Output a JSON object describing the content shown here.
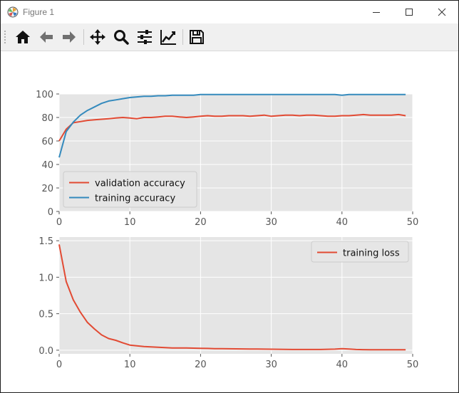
{
  "window": {
    "title": "Figure 1"
  },
  "toolbar": {
    "buttons": [
      {
        "name": "home",
        "icon": "home-icon"
      },
      {
        "name": "back",
        "icon": "arrow-left-icon"
      },
      {
        "name": "forward",
        "icon": "arrow-right-icon"
      },
      {
        "name": "pan",
        "icon": "move-icon"
      },
      {
        "name": "zoom",
        "icon": "magnifier-icon"
      },
      {
        "name": "subplots",
        "icon": "sliders-icon"
      },
      {
        "name": "edit-axes",
        "icon": "line-chart-icon"
      },
      {
        "name": "save",
        "icon": "floppy-disk-icon"
      }
    ]
  },
  "chart_data": [
    {
      "type": "line",
      "title": "",
      "xlabel": "",
      "ylabel": "",
      "xlim": [
        0,
        50
      ],
      "ylim": [
        0,
        100
      ],
      "xticks": [
        0,
        10,
        20,
        30,
        40,
        50
      ],
      "yticks": [
        0,
        20,
        40,
        60,
        80,
        100
      ],
      "grid": true,
      "legend_position": "lower-left",
      "x": [
        0,
        1,
        2,
        3,
        4,
        5,
        6,
        7,
        8,
        9,
        10,
        11,
        12,
        13,
        14,
        15,
        16,
        17,
        18,
        19,
        20,
        21,
        22,
        23,
        24,
        25,
        26,
        27,
        28,
        29,
        30,
        31,
        32,
        33,
        34,
        35,
        36,
        37,
        38,
        39,
        40,
        41,
        42,
        43,
        44,
        45,
        46,
        47,
        48,
        49
      ],
      "series": [
        {
          "name": "validation accuracy",
          "color": "#e24a33",
          "values": [
            60,
            70,
            75.5,
            76.5,
            77.5,
            78,
            78.5,
            79,
            79.5,
            80,
            79.5,
            79,
            80,
            80,
            80.5,
            81,
            81,
            80.5,
            80,
            80.5,
            81,
            81.5,
            81,
            81,
            81.5,
            81.5,
            81.5,
            81,
            81.5,
            82,
            81,
            81.5,
            82,
            82,
            81.5,
            82,
            82,
            81.5,
            81,
            81,
            81.5,
            81.5,
            82,
            82.5,
            82,
            82,
            82,
            82,
            82.5,
            81.5
          ]
        },
        {
          "name": "training accuracy",
          "color": "#348abd",
          "values": [
            46,
            68,
            76,
            82,
            86,
            89,
            92,
            94,
            95,
            96,
            97,
            97.5,
            98,
            98,
            98.5,
            98.5,
            99,
            99,
            99,
            99,
            99.5,
            99.5,
            99.5,
            99.5,
            99.5,
            99.5,
            99.5,
            99.5,
            99.5,
            99.5,
            99.5,
            99.5,
            99.5,
            99.5,
            99.5,
            99.5,
            99.5,
            99.5,
            99.5,
            99.5,
            99,
            99.5,
            99.5,
            99.5,
            99.5,
            99.5,
            99.5,
            99.5,
            99.5,
            99.5
          ]
        }
      ]
    },
    {
      "type": "line",
      "title": "",
      "xlabel": "",
      "ylabel": "",
      "xlim": [
        0,
        50
      ],
      "ylim": [
        -0.05,
        1.55
      ],
      "xticks": [
        0,
        10,
        20,
        30,
        40,
        50
      ],
      "yticks": [
        0.0,
        0.5,
        1.0,
        1.5
      ],
      "grid": true,
      "legend_position": "upper-right",
      "x": [
        0,
        1,
        2,
        3,
        4,
        5,
        6,
        7,
        8,
        9,
        10,
        11,
        12,
        13,
        14,
        15,
        16,
        17,
        18,
        19,
        20,
        21,
        22,
        23,
        24,
        25,
        26,
        27,
        28,
        29,
        30,
        31,
        32,
        33,
        34,
        35,
        36,
        37,
        38,
        39,
        40,
        41,
        42,
        43,
        44,
        45,
        46,
        47,
        48,
        49
      ],
      "series": [
        {
          "name": "training loss",
          "color": "#e24a33",
          "values": [
            1.45,
            0.94,
            0.69,
            0.52,
            0.38,
            0.29,
            0.21,
            0.16,
            0.135,
            0.1,
            0.07,
            0.06,
            0.05,
            0.045,
            0.04,
            0.035,
            0.03,
            0.03,
            0.03,
            0.028,
            0.026,
            0.024,
            0.02,
            0.02,
            0.019,
            0.018,
            0.017,
            0.016,
            0.015,
            0.014,
            0.013,
            0.012,
            0.011,
            0.01,
            0.01,
            0.01,
            0.01,
            0.01,
            0.012,
            0.014,
            0.02,
            0.015,
            0.01,
            0.008,
            0.006,
            0.006,
            0.006,
            0.006,
            0.006,
            0.006
          ]
        }
      ]
    }
  ]
}
